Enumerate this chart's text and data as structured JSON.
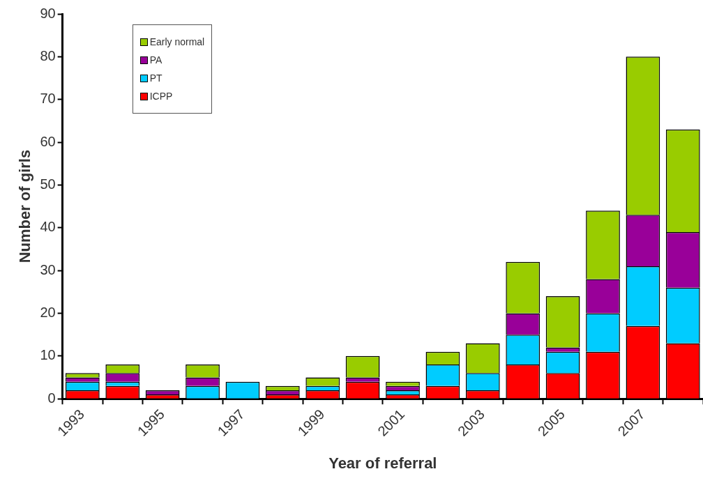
{
  "chart_data": {
    "type": "bar",
    "stacked": true,
    "xlabel": "Year of referral",
    "ylabel": "Number of girls",
    "categories": [
      "1993",
      null,
      "1995",
      null,
      "1997",
      null,
      "1999",
      null,
      "2001",
      null,
      "2003",
      null,
      "2005",
      null,
      "2007",
      null
    ],
    "series": [
      {
        "name": "ICPP",
        "color": "#ff0000",
        "values": [
          2,
          3,
          1,
          0,
          0,
          1,
          2,
          4,
          1,
          3,
          2,
          8,
          6,
          11,
          17,
          13
        ]
      },
      {
        "name": "PT",
        "color": "#00ccff",
        "values": [
          2,
          1,
          0,
          3,
          4,
          0,
          1,
          0,
          1,
          5,
          4,
          7,
          5,
          9,
          14,
          13
        ]
      },
      {
        "name": "PA",
        "color": "#990099",
        "values": [
          1,
          2,
          1,
          2,
          0,
          1,
          0,
          1,
          1,
          0,
          0,
          5,
          1,
          8,
          12,
          13
        ]
      },
      {
        "name": "Early normal",
        "color": "#99cc00",
        "values": [
          1,
          2,
          0,
          3,
          0,
          1,
          2,
          5,
          1,
          3,
          7,
          12,
          12,
          16,
          37,
          24
        ]
      }
    ],
    "ylim": [
      0,
      90
    ],
    "yticks": [
      0,
      10,
      20,
      30,
      40,
      50,
      60,
      70,
      80,
      90
    ],
    "grid": false,
    "legend": "top left"
  }
}
